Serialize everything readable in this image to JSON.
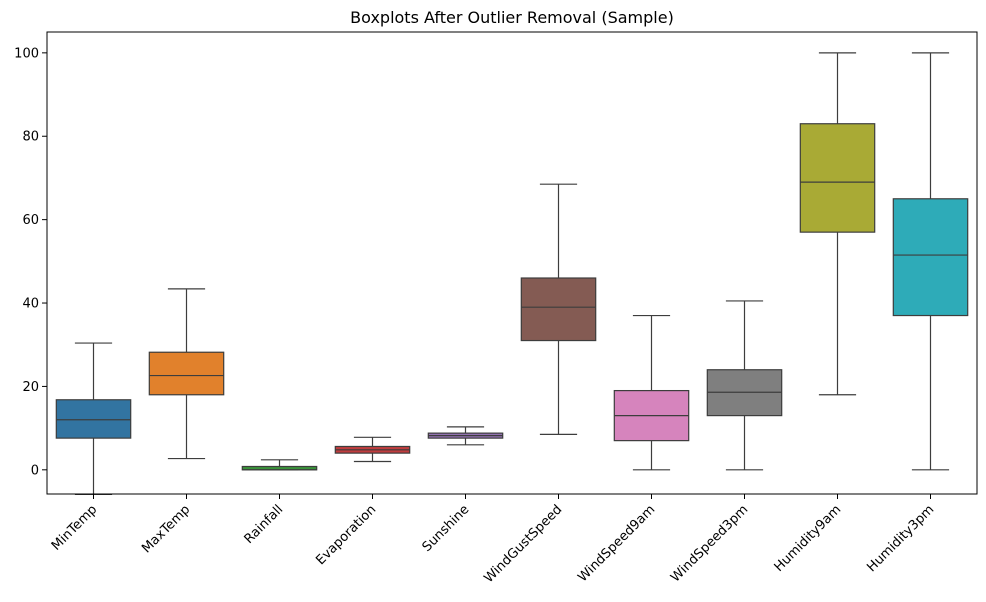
{
  "chart_data": {
    "type": "boxplot",
    "title": "Boxplots After Outlier Removal (Sample)",
    "xlabel": "",
    "ylabel": "",
    "ylim": [
      -5.8,
      105
    ],
    "yticks": [
      0,
      20,
      40,
      60,
      80,
      100
    ],
    "grid": false,
    "categories": [
      "MinTemp",
      "MaxTemp",
      "Rainfall",
      "Evaporation",
      "Sunshine",
      "WindGustSpeed",
      "WindSpeed9am",
      "WindSpeed3pm",
      "Humidity9am",
      "Humidity3pm"
    ],
    "series": [
      {
        "category": "MinTemp",
        "whisker_low": -5.9,
        "q1": 7.6,
        "median": 12.0,
        "q3": 16.8,
        "whisker_high": 30.4,
        "color": "#3274a1"
      },
      {
        "category": "MaxTemp",
        "whisker_low": 2.7,
        "q1": 18.0,
        "median": 22.6,
        "q3": 28.2,
        "whisker_high": 43.4,
        "color": "#e1812c"
      },
      {
        "category": "Rainfall",
        "whisker_low": 0.0,
        "q1": 0.0,
        "median": 0.0,
        "q3": 0.8,
        "whisker_high": 2.4,
        "color": "#3a923a"
      },
      {
        "category": "Evaporation",
        "whisker_low": 2.0,
        "q1": 4.0,
        "median": 4.8,
        "q3": 5.6,
        "whisker_high": 7.8,
        "color": "#c03d3e"
      },
      {
        "category": "Sunshine",
        "whisker_low": 6.0,
        "q1": 7.6,
        "median": 8.2,
        "q3": 8.8,
        "whisker_high": 10.3,
        "color": "#9372b2"
      },
      {
        "category": "WindGustSpeed",
        "whisker_low": 8.5,
        "q1": 31.0,
        "median": 39.0,
        "q3": 46.0,
        "whisker_high": 68.5,
        "color": "#845b53"
      },
      {
        "category": "WindSpeed9am",
        "whisker_low": 0.0,
        "q1": 7.0,
        "median": 13.0,
        "q3": 19.0,
        "whisker_high": 37.0,
        "color": "#d684bd"
      },
      {
        "category": "WindSpeed3pm",
        "whisker_low": 0.0,
        "q1": 13.0,
        "median": 18.6,
        "q3": 24.0,
        "whisker_high": 40.5,
        "color": "#7f7f7f"
      },
      {
        "category": "Humidity9am",
        "whisker_low": 18.0,
        "q1": 57.0,
        "median": 69.0,
        "q3": 83.0,
        "whisker_high": 100.0,
        "color": "#a9aa35"
      },
      {
        "category": "Humidity3pm",
        "whisker_low": 0.0,
        "q1": 37.0,
        "median": 51.5,
        "q3": 65.0,
        "whisker_high": 100.0,
        "color": "#2eabb8"
      }
    ]
  }
}
